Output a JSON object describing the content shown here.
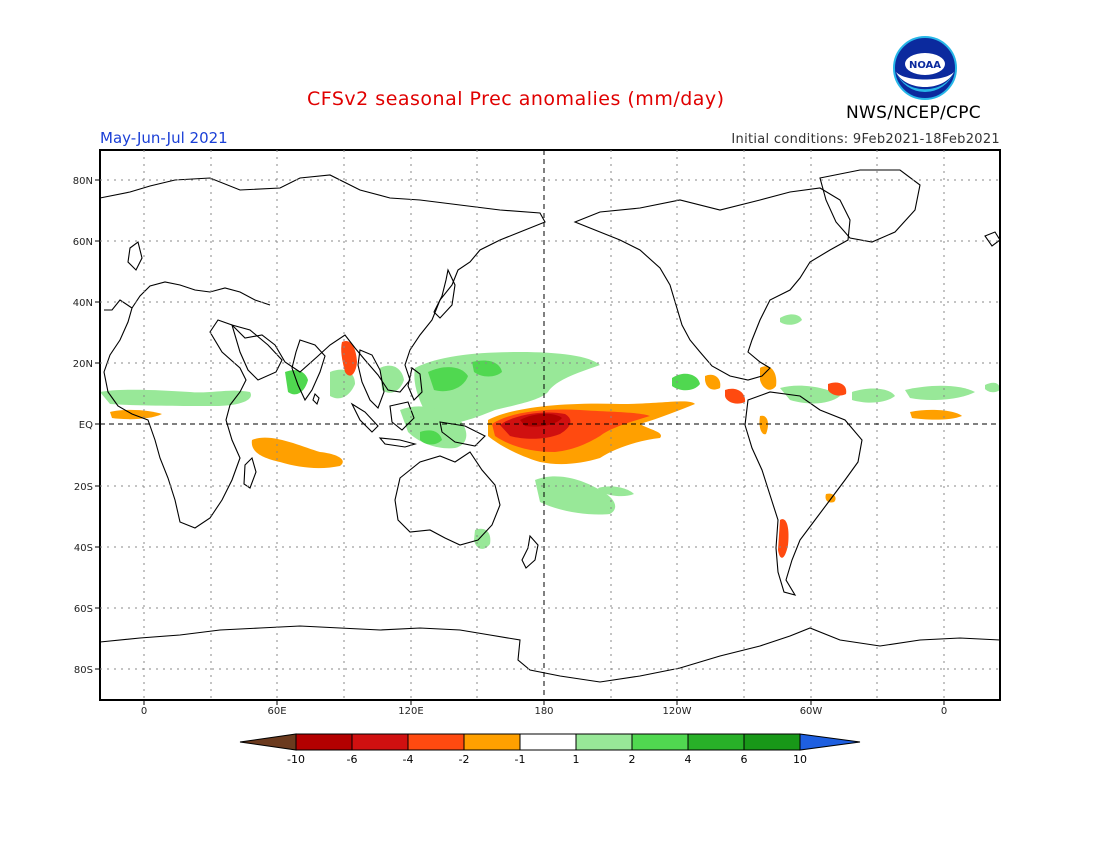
{
  "header": {
    "title": "CFSv2 seasonal Prec anomalies (mm/day)",
    "period": "May-Jun-Jul 2021",
    "initial_conditions": "Initial conditions: 9Feb2021-18Feb2021",
    "agency": "NWS/NCEP/CPC",
    "logo_text": "NOAA"
  },
  "axes": {
    "lat_labels": [
      "80N",
      "60N",
      "40N",
      "20N",
      "EQ",
      "20S",
      "40S",
      "60S",
      "80S"
    ],
    "lon_labels": [
      "0",
      "60E",
      "120E",
      "180",
      "120W",
      "60W",
      "0"
    ]
  },
  "colorbar": {
    "ticks": [
      "-10",
      "-6",
      "-4",
      "-2",
      "-1",
      "1",
      "2",
      "4",
      "6",
      "10"
    ],
    "colors": [
      "#6b3a1e",
      "#b30000",
      "#d01010",
      "#ff4a10",
      "#ffa000",
      "#ffffff",
      "#98e898",
      "#50d850",
      "#28b028",
      "#189818",
      "#1e5fe0"
    ]
  },
  "colors": {
    "dry_strong": "#b30000",
    "dry": "#ff4a10",
    "dry_light": "#ffa000",
    "wet_light": "#98e898",
    "wet": "#50d850"
  }
}
